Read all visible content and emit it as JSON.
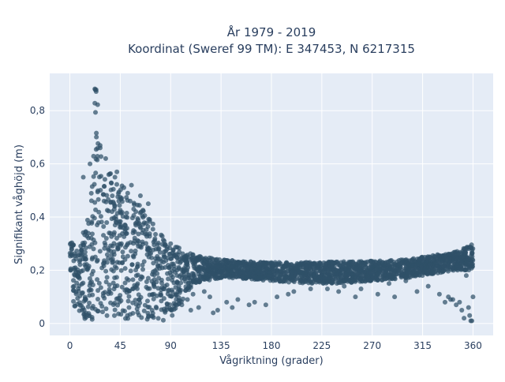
{
  "chart_data": {
    "type": "scatter",
    "title": "År 1979 - 2019",
    "subtitle": "Koordinat (Sweref 99 TM): E 347453, N 6217315",
    "xlabel": "Vågriktning (grader)",
    "ylabel": "Signifikant våghöjd (m)",
    "xlim": [
      -18,
      378
    ],
    "ylim": [
      -0.045,
      0.94
    ],
    "x_ticks": [
      0,
      45,
      90,
      135,
      180,
      225,
      270,
      315,
      360
    ],
    "x_tick_labels": [
      "0",
      "45",
      "90",
      "135",
      "180",
      "225",
      "270",
      "315",
      "360"
    ],
    "y_ticks": [
      0,
      0.2,
      0.4,
      0.6,
      0.8
    ],
    "y_tick_labels": [
      "0",
      "0,2",
      "0,4",
      "0,6",
      "0,8"
    ],
    "grid": true,
    "legend": "none",
    "colors": {
      "marker": "#2f5068",
      "plot_bg": "#e5ecf6",
      "grid": "#ffffff",
      "text": "#2a3f5f"
    },
    "series": [
      {
        "envelope": {
          "x": [
            0,
            5,
            10,
            15,
            20,
            22,
            24,
            26,
            28,
            30,
            35,
            40,
            45,
            50,
            55,
            60,
            65,
            70,
            75,
            80,
            85,
            90,
            100,
            110,
            120,
            135,
            150,
            180,
            210,
            240,
            270,
            300,
            315,
            330,
            345,
            355,
            360
          ],
          "y_top": [
            0.3,
            0.31,
            0.32,
            0.38,
            0.55,
            0.88,
            0.9,
            0.75,
            0.66,
            0.6,
            0.58,
            0.56,
            0.54,
            0.5,
            0.48,
            0.46,
            0.43,
            0.4,
            0.37,
            0.34,
            0.32,
            0.3,
            0.28,
            0.26,
            0.25,
            0.24,
            0.235,
            0.23,
            0.23,
            0.232,
            0.235,
            0.24,
            0.25,
            0.26,
            0.27,
            0.29,
            0.3
          ],
          "y_bottom": [
            0.2,
            0.01,
            0.01,
            0.01,
            0.01,
            0.01,
            0.01,
            0.01,
            0.01,
            0.01,
            0.01,
            0.01,
            0.01,
            0.01,
            0.01,
            0.01,
            0.01,
            0.01,
            0.01,
            0.01,
            0.01,
            0.02,
            0.08,
            0.14,
            0.16,
            0.17,
            0.17,
            0.16,
            0.15,
            0.15,
            0.16,
            0.17,
            0.18,
            0.19,
            0.2,
            0.2,
            0.2
          ]
        },
        "outliers": [
          [
            12,
            0.55
          ],
          [
            18,
            0.6
          ],
          [
            32,
            0.62
          ],
          [
            42,
            0.57
          ],
          [
            55,
            0.52
          ],
          [
            63,
            0.48
          ],
          [
            70,
            0.45
          ],
          [
            90,
            0.3
          ],
          [
            95,
            0.26
          ],
          [
            100,
            0.07
          ],
          [
            105,
            0.09
          ],
          [
            110,
            0.11
          ],
          [
            120,
            0.12
          ],
          [
            125,
            0.1
          ],
          [
            140,
            0.08
          ],
          [
            150,
            0.09
          ],
          [
            165,
            0.08
          ],
          [
            175,
            0.07
          ],
          [
            200,
            0.12
          ],
          [
            230,
            0.13
          ],
          [
            245,
            0.14
          ],
          [
            260,
            0.13
          ],
          [
            285,
            0.15
          ],
          [
            300,
            0.16
          ],
          [
            320,
            0.14
          ],
          [
            330,
            0.11
          ],
          [
            340,
            0.09
          ],
          [
            345,
            0.07
          ],
          [
            350,
            0.05
          ],
          [
            352,
            0.02
          ],
          [
            354,
            0.18
          ],
          [
            356,
            0.06
          ],
          [
            357,
            0.03
          ],
          [
            358,
            0.01
          ],
          [
            359,
            0.01
          ],
          [
            360,
            0.1
          ],
          [
            335,
            0.08
          ],
          [
            338,
            0.1
          ],
          [
            342,
            0.09
          ],
          [
            348,
            0.08
          ],
          [
            310,
            0.12
          ],
          [
            290,
            0.1
          ],
          [
            275,
            0.11
          ],
          [
            255,
            0.1
          ],
          [
            240,
            0.12
          ],
          [
            215,
            0.13
          ],
          [
            195,
            0.11
          ],
          [
            185,
            0.1
          ],
          [
            160,
            0.07
          ],
          [
            145,
            0.06
          ],
          [
            132,
            0.05
          ],
          [
            128,
            0.04
          ],
          [
            115,
            0.06
          ],
          [
            108,
            0.05
          ]
        ]
      }
    ]
  }
}
